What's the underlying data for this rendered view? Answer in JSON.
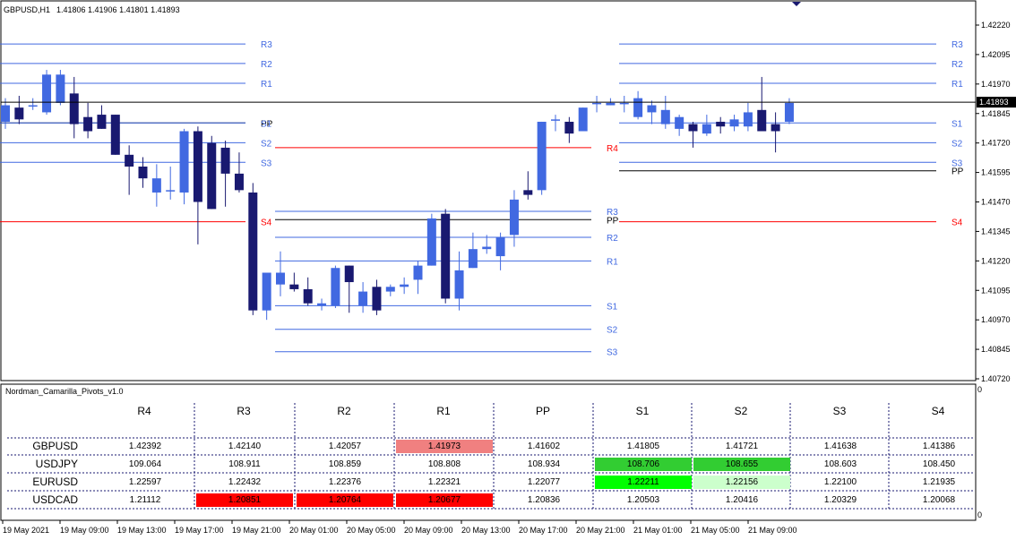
{
  "header": {
    "symbol_tf": "GBPUSD,H1",
    "ohlc": "1.41806 1.41906 1.41801 1.41893"
  },
  "chart_data": {
    "type": "candlestick",
    "ylim": [
      1.4065,
      1.423
    ],
    "y_ticks": [
      "1.42220",
      "1.42095",
      "1.41970",
      "1.41845",
      "1.41720",
      "1.41595",
      "1.41470",
      "1.41345",
      "1.41220",
      "1.41095",
      "1.40970",
      "1.40845",
      "1.40720"
    ],
    "current_price": "1.41893",
    "x_ticks": [
      "19 May 2021",
      "19 May 09:00",
      "19 May 13:00",
      "19 May 17:00",
      "19 May 21:00",
      "20 May 01:00",
      "20 May 05:00",
      "20 May 09:00",
      "20 May 13:00",
      "20 May 17:00",
      "20 May 21:00",
      "21 May 01:00",
      "21 May 05:00",
      "21 May 09:00"
    ],
    "colors": {
      "bull": "#4169E1",
      "bear": "#191970",
      "level": "#4169E1",
      "s4": "#FF0000",
      "pp": "#000000",
      "label": "#4169E1"
    },
    "candles": [
      [
        1.4181,
        1.4191,
        1.4178,
        1.4188
      ],
      [
        1.4187,
        1.4192,
        1.418,
        1.4182
      ],
      [
        1.4188,
        1.4191,
        1.4186,
        1.4188
      ],
      [
        1.4185,
        1.4203,
        1.4184,
        1.4201
      ],
      [
        1.4189,
        1.4203,
        1.4188,
        1.4201
      ],
      [
        1.4193,
        1.42,
        1.4174,
        1.418
      ],
      [
        1.4183,
        1.4189,
        1.4174,
        1.4177
      ],
      [
        1.4184,
        1.4188,
        1.4178,
        1.4178
      ],
      [
        1.4184,
        1.4184,
        1.4167,
        1.4167
      ],
      [
        1.4167,
        1.4171,
        1.415,
        1.4162
      ],
      [
        1.4162,
        1.4166,
        1.4153,
        1.4157
      ],
      [
        1.4151,
        1.4163,
        1.4145,
        1.4157
      ],
      [
        1.4152,
        1.4162,
        1.4148,
        1.4152
      ],
      [
        1.4151,
        1.4178,
        1.4146,
        1.4177
      ],
      [
        1.4177,
        1.4179,
        1.4129,
        1.4147
      ],
      [
        1.4172,
        1.4175,
        1.4144,
        1.4144
      ],
      [
        1.417,
        1.4173,
        1.4145,
        1.4159
      ],
      [
        1.4159,
        1.4168,
        1.4151,
        1.4152
      ],
      [
        1.4151,
        1.4155,
        1.4099,
        1.4101
      ],
      [
        1.4101,
        1.4117,
        1.4097,
        1.4117
      ],
      [
        1.4112,
        1.4126,
        1.4107,
        1.4117
      ],
      [
        1.4112,
        1.4117,
        1.4109,
        1.411
      ],
      [
        1.411,
        1.4115,
        1.4103,
        1.4104
      ],
      [
        1.4103,
        1.4106,
        1.4101,
        1.4104
      ],
      [
        1.4103,
        1.412,
        1.4102,
        1.4119
      ],
      [
        1.412,
        1.412,
        1.41,
        1.4113
      ],
      [
        1.4103,
        1.4113,
        1.41,
        1.4109
      ],
      [
        1.4111,
        1.4114,
        1.4099,
        1.4101
      ],
      [
        1.4109,
        1.4112,
        1.4107,
        1.4111
      ],
      [
        1.4111,
        1.4115,
        1.4108,
        1.4112
      ],
      [
        1.4114,
        1.4122,
        1.4108,
        1.412
      ],
      [
        1.412,
        1.4142,
        1.412,
        1.414
      ],
      [
        1.4142,
        1.4144,
        1.4104,
        1.4106
      ],
      [
        1.4106,
        1.4126,
        1.4101,
        1.4118
      ],
      [
        1.4119,
        1.4134,
        1.4119,
        1.4127
      ],
      [
        1.4127,
        1.4133,
        1.4125,
        1.4128
      ],
      [
        1.4124,
        1.4134,
        1.4118,
        1.4132
      ],
      [
        1.4133,
        1.4152,
        1.4128,
        1.4148
      ],
      [
        1.4152,
        1.416,
        1.4148,
        1.415
      ],
      [
        1.4152,
        1.4181,
        1.415,
        1.4181
      ],
      [
        1.4182,
        1.4184,
        1.4177,
        1.4182
      ],
      [
        1.4181,
        1.4183,
        1.4172,
        1.4176
      ],
      [
        1.4177,
        1.4187,
        1.4177,
        1.4187
      ],
      [
        1.4189,
        1.4192,
        1.4185,
        1.4189
      ],
      [
        1.4188,
        1.4191,
        1.4188,
        1.4189
      ],
      [
        1.4189,
        1.4192,
        1.4185,
        1.4189
      ],
      [
        1.4183,
        1.4194,
        1.4182,
        1.4191
      ],
      [
        1.4185,
        1.419,
        1.418,
        1.4188
      ],
      [
        1.418,
        1.4192,
        1.4178,
        1.4186
      ],
      [
        1.4178,
        1.4184,
        1.4175,
        1.4183
      ],
      [
        1.418,
        1.4181,
        1.417,
        1.4177
      ],
      [
        1.4176,
        1.4184,
        1.4175,
        1.418
      ],
      [
        1.4181,
        1.4183,
        1.4176,
        1.4179
      ],
      [
        1.4179,
        1.4184,
        1.4177,
        1.4182
      ],
      [
        1.4179,
        1.4189,
        1.4177,
        1.4185
      ],
      [
        1.4186,
        1.42,
        1.4178,
        1.4177
      ],
      [
        1.418,
        1.4185,
        1.4168,
        1.4177
      ],
      [
        1.4181,
        1.4191,
        1.418,
        1.4189
      ]
    ],
    "level_labels": [
      "R4",
      "R3",
      "R2",
      "R1",
      "PP",
      "S1",
      "S2",
      "S3",
      "S4"
    ],
    "day_levels": [
      {
        "x0": 0,
        "x1": 274,
        "R3": 1.4214,
        "R2": 1.42057,
        "R1": 1.41973,
        "PP": 1.41805,
        "S1": 1.41805,
        "S2": 1.41721,
        "S3": 1.41638,
        "S4": 1.41386
      },
      {
        "x0": 307,
        "x1": 660,
        "R4": 1.417,
        "R3": 1.4143,
        "R2": 1.4132,
        "R1": 1.4122,
        "PP": 1.41395,
        "S1": 1.4103,
        "S2": 1.4093,
        "S3": 1.40835
      },
      {
        "x0": 691,
        "x1": 1045,
        "R3": 1.4214,
        "R2": 1.42057,
        "R1": 1.41973,
        "PP": 1.41602,
        "S1": 1.41805,
        "S2": 1.41721,
        "S3": 1.41638,
        "S4": 1.41386
      }
    ],
    "day1_pp_label": "PP"
  },
  "indicator": {
    "name": "Nordman_Camarilla_Pivots_v1.0",
    "axis_top": "0",
    "axis_bottom": "0",
    "columns": [
      "R4",
      "R3",
      "R2",
      "R1",
      "PP",
      "S1",
      "S2",
      "S3",
      "S4"
    ],
    "rows": [
      {
        "symbol": "GBPUSD",
        "values": [
          "1.42392",
          "1.42140",
          "1.42057",
          "1.41973",
          "1.41602",
          "1.41805",
          "1.41721",
          "1.41638",
          "1.41386"
        ],
        "bg": [
          "",
          "",
          "",
          "#F08080",
          "",
          "",
          "",
          "",
          ""
        ]
      },
      {
        "symbol": "USDJPY",
        "values": [
          "109.064",
          "108.911",
          "108.859",
          "108.808",
          "108.934",
          "108.706",
          "108.655",
          "108.603",
          "108.450"
        ],
        "bg": [
          "",
          "",
          "",
          "",
          "",
          "#32CD32",
          "#32CD32",
          "",
          ""
        ]
      },
      {
        "symbol": "EURUSD",
        "values": [
          "1.22597",
          "1.22432",
          "1.22376",
          "1.22321",
          "1.22077",
          "1.22211",
          "1.22156",
          "1.22100",
          "1.21935"
        ],
        "bg": [
          "",
          "",
          "",
          "",
          "",
          "#00FF00",
          "#CCFFCC",
          "",
          ""
        ]
      },
      {
        "symbol": "USDCAD",
        "values": [
          "1.21112",
          "1.20851",
          "1.20764",
          "1.20677",
          "1.20836",
          "1.20503",
          "1.20416",
          "1.20329",
          "1.20068"
        ],
        "bg": [
          "",
          "#FF0000",
          "#FF0000",
          "#FF0000",
          "",
          "",
          "",
          "",
          ""
        ]
      }
    ]
  }
}
